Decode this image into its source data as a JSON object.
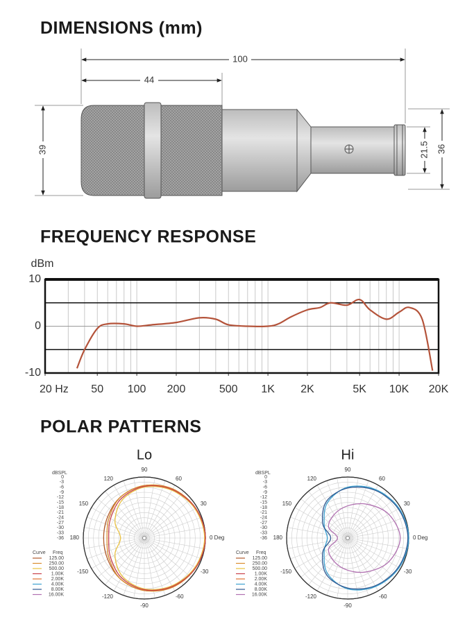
{
  "dimensions": {
    "title": "DIMENSIONS (mm)",
    "overall_length": 100,
    "head_length": 44,
    "head_diameter": 39,
    "tail_diameter": 21.5,
    "body_diameter": 36
  },
  "frequency_response": {
    "title": "FREQUENCY RESPONSE"
  },
  "polar_patterns": {
    "title": "POLAR PATTERNS"
  },
  "chart_data": [
    {
      "type": "line",
      "ylabel": "dBm",
      "x": [
        35,
        40,
        50,
        60,
        80,
        100,
        130,
        200,
        300,
        400,
        500,
        700,
        1000,
        1200,
        1500,
        2000,
        2500,
        3000,
        4000,
        5000,
        6000,
        8000,
        10000,
        12000,
        15000,
        18000
      ],
      "values": [
        -9,
        -5,
        -0.5,
        0.5,
        0.5,
        0,
        0.3,
        0.8,
        1.8,
        1.5,
        0.3,
        0,
        0,
        0.5,
        2,
        3.5,
        4,
        5,
        4.5,
        5.7,
        3.5,
        1.5,
        3,
        4,
        1.5,
        -9.5
      ],
      "color": "#b4533a",
      "xscale": "log",
      "xlim": [
        20,
        20000
      ],
      "ylim": [
        -10,
        10
      ],
      "xticks": [
        {
          "value": 20,
          "label": "20 Hz"
        },
        50,
        100,
        200,
        500,
        {
          "value": 1000,
          "label": "1K"
        },
        {
          "value": 2000,
          "label": "2K"
        },
        {
          "value": 5000,
          "label": "5K"
        },
        {
          "value": 10000,
          "label": "10K"
        },
        {
          "value": 20000,
          "label": "20K"
        }
      ],
      "yticks": [
        -10,
        0,
        10
      ],
      "ygrid": [
        -5,
        5
      ],
      "grid": true
    },
    {
      "type": "polar",
      "title": "Lo",
      "rlabel": "dBSPL",
      "rlim": [
        -36,
        0
      ],
      "rticks": [
        0,
        -3,
        -6,
        -9,
        -12,
        -15,
        -18,
        -21,
        -24,
        -27,
        -30,
        -33,
        -36
      ],
      "thetaticks": [
        90,
        60,
        30,
        {
          "value": 0,
          "label": "0 Deg"
        },
        -30,
        -60,
        -90,
        -120,
        -150,
        180,
        150,
        120
      ],
      "legend_header": [
        "Curve",
        "Freq"
      ],
      "theta": [
        0,
        30,
        60,
        90,
        120,
        150,
        180,
        -150,
        -120,
        -90,
        -60,
        -30
      ],
      "series": [
        {
          "name": "125.00",
          "color": "#b05a2a",
          "values": [
            0,
            -1,
            -3,
            -5,
            -8,
            -11,
            -12,
            -11,
            -8,
            -5,
            -3,
            -1
          ]
        },
        {
          "name": "250.00",
          "color": "#d98c2e",
          "values": [
            0,
            -1,
            -2.5,
            -5,
            -8,
            -12,
            -14,
            -12,
            -8,
            -5,
            -2.5,
            -1
          ]
        },
        {
          "name": "500.00",
          "color": "#e8c040",
          "values": [
            -0.5,
            -1.5,
            -3.5,
            -6,
            -10,
            -16,
            -22,
            -16,
            -10,
            -6,
            -3.5,
            -1.5
          ]
        },
        {
          "name": "1.00K",
          "color": "#c8404a",
          "values": [
            0,
            -1,
            -3,
            -5.5,
            -9,
            -13,
            -15,
            -13,
            -9,
            -5.5,
            -3,
            -1
          ]
        },
        {
          "name": "2.00K",
          "color": "#e07030"
        },
        {
          "name": "4.00K",
          "color": "#3aa0d0"
        },
        {
          "name": "8.00K",
          "color": "#305890"
        },
        {
          "name": "16.00K",
          "color": "#b070b0"
        }
      ]
    },
    {
      "type": "polar",
      "title": "Hi",
      "rlabel": "dBSPL",
      "rlim": [
        -36,
        0
      ],
      "rticks": [
        0,
        -3,
        -6,
        -9,
        -12,
        -15,
        -18,
        -21,
        -24,
        -27,
        -30,
        -33,
        -36
      ],
      "thetaticks": [
        90,
        60,
        30,
        {
          "value": 0,
          "label": "0 Deg"
        },
        -30,
        -60,
        -90,
        -120,
        -150,
        180,
        150,
        120
      ],
      "legend_header": [
        "Curve",
        "Freq"
      ],
      "theta": [
        0,
        30,
        60,
        90,
        120,
        150,
        180,
        -150,
        -120,
        -90,
        -60,
        -30
      ],
      "series": [
        {
          "name": "125.00",
          "color": "#b05a2a"
        },
        {
          "name": "250.00",
          "color": "#d98c2e"
        },
        {
          "name": "500.00",
          "color": "#e8c040"
        },
        {
          "name": "1.00K",
          "color": "#c8404a"
        },
        {
          "name": "2.00K",
          "color": "#e07030"
        },
        {
          "name": "4.00K",
          "color": "#3aa0d0",
          "values": [
            0,
            -1,
            -3,
            -6,
            -12,
            -20,
            -24,
            -20,
            -12,
            -6,
            -3,
            -1
          ]
        },
        {
          "name": "8.00K",
          "color": "#305890",
          "values": [
            -0.5,
            -1.5,
            -3.5,
            -6.5,
            -11,
            -19,
            -26,
            -19,
            -11,
            -6.5,
            -3.5,
            -1.5
          ]
        },
        {
          "name": "16.00K",
          "color": "#b070b0",
          "values": [
            -5,
            -8,
            -13,
            -17,
            -20,
            -23,
            -30,
            -23,
            -20,
            -17,
            -13,
            -8
          ]
        }
      ]
    }
  ]
}
